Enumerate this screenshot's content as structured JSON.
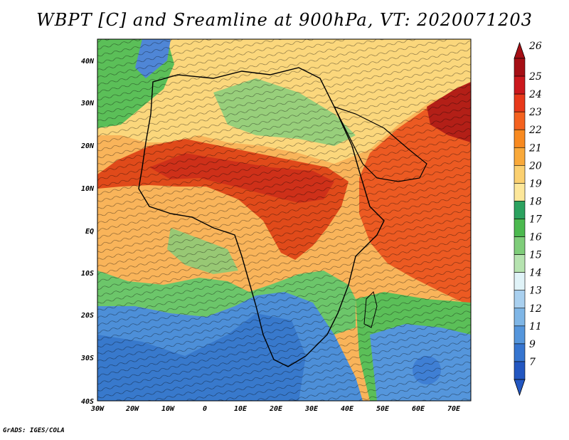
{
  "title": "WBPT [C] and Sreamline at 900hPa, VT: 2020071203",
  "credit": "GrADS: IGES/COLA",
  "lat_labels": [
    "40N",
    "30N",
    "20N",
    "10N",
    "EQ",
    "10S",
    "20S",
    "30S",
    "40S"
  ],
  "lon_labels": [
    "30W",
    "20W",
    "10W",
    "0",
    "10E",
    "20E",
    "30E",
    "40E",
    "50E",
    "60E",
    "70E"
  ],
  "colorbar": {
    "labels": [
      "26",
      "25",
      "24",
      "23",
      "22",
      "21",
      "20",
      "19",
      "18",
      "17",
      "16",
      "15",
      "14",
      "13",
      "12",
      "11",
      "9",
      "7"
    ],
    "colors": [
      "#a50f15",
      "#cb181d",
      "#e8391a",
      "#f4621f",
      "#f88a20",
      "#f9a93a",
      "#fbd070",
      "#fde79a",
      "#2ca25f",
      "#4cb94f",
      "#7fcd7a",
      "#b6e3b0",
      "#e0f3f8",
      "#a9d0ef",
      "#7fb6e6",
      "#5596dc",
      "#3675d0",
      "#2357c1"
    ]
  },
  "regions": {
    "north_green": "#5bbf58",
    "sahel_red": "#e04a1a",
    "equatorial_orange": "#f7a34a",
    "ocean_south_green": "#6cc66a",
    "south_blue": "#4d8fd8",
    "indian_ocean_red": "#ec5a22",
    "arabia_red": "#c8281a"
  }
}
